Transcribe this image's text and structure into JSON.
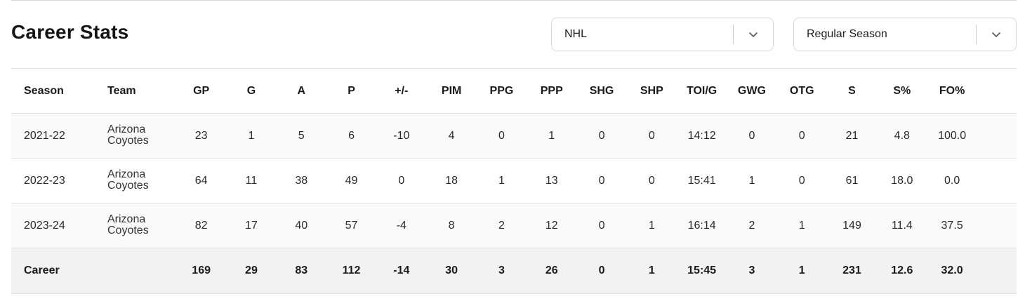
{
  "title": "Career Stats",
  "filters": {
    "league": "NHL",
    "season_type": "Regular Season",
    "chevron_icon": "chevron-down-icon"
  },
  "table": {
    "headers": [
      "Season",
      "Team",
      "GP",
      "G",
      "A",
      "P",
      "+/-",
      "PIM",
      "PPG",
      "PPP",
      "SHG",
      "SHP",
      "TOI/G",
      "GWG",
      "OTG",
      "S",
      "S%",
      "FO%"
    ],
    "rows": [
      [
        "2021-22",
        "Arizona Coyotes",
        "23",
        "1",
        "5",
        "6",
        "-10",
        "4",
        "0",
        "1",
        "0",
        "0",
        "14:12",
        "0",
        "0",
        "21",
        "4.8",
        "100.0"
      ],
      [
        "2022-23",
        "Arizona Coyotes",
        "64",
        "11",
        "38",
        "49",
        "0",
        "18",
        "1",
        "13",
        "0",
        "0",
        "15:41",
        "1",
        "0",
        "61",
        "18.0",
        "0.0"
      ],
      [
        "2023-24",
        "Arizona Coyotes",
        "82",
        "17",
        "40",
        "57",
        "-4",
        "8",
        "2",
        "12",
        "0",
        "1",
        "16:14",
        "2",
        "1",
        "149",
        "11.4",
        "37.5"
      ]
    ],
    "total": [
      "Career",
      "",
      "169",
      "29",
      "83",
      "112",
      "-14",
      "30",
      "3",
      "26",
      "0",
      "1",
      "15:45",
      "3",
      "1",
      "231",
      "12.6",
      "32.0"
    ]
  }
}
